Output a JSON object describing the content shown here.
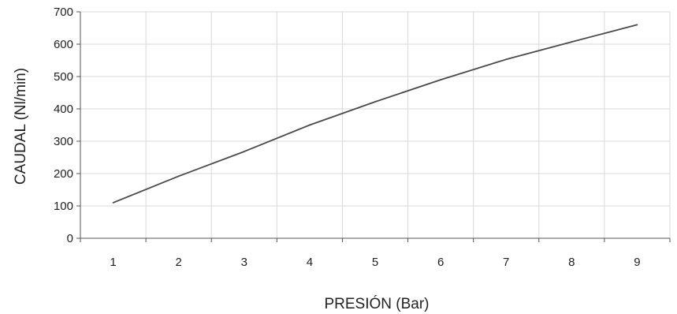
{
  "chart_data": {
    "type": "line",
    "title": "",
    "xlabel": "PRESIÓN (Bar)",
    "ylabel": "CAUDAL (Nl/min)",
    "xlim": [
      0.5,
      9.5
    ],
    "ylim": [
      0,
      700
    ],
    "x_ticks": [
      "1",
      "2",
      "3",
      "4",
      "5",
      "6",
      "7",
      "8",
      "9"
    ],
    "y_ticks": [
      "0",
      "100",
      "200",
      "300",
      "400",
      "500",
      "600",
      "700"
    ],
    "grid": true,
    "legend": "none",
    "colors": {
      "line": "#4a4a4a",
      "grid": "#d9d9d9",
      "axis": "#555555"
    },
    "series": [
      {
        "x": [
          1,
          2,
          3,
          4,
          5,
          6,
          7,
          8,
          9
        ],
        "y": [
          110,
          192,
          268,
          350,
          422,
          490,
          553,
          607,
          660
        ]
      }
    ]
  }
}
